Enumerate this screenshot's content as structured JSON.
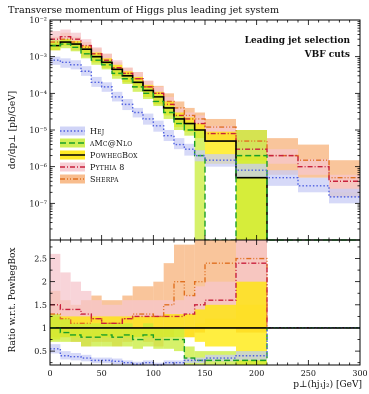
{
  "chart_data": {
    "type": "line",
    "title": "Transverse momentum of Higgs plus leading jet system",
    "annotations": [
      "Leading jet selection",
      "VBF cuts"
    ],
    "x_edges": [
      0,
      10,
      20,
      30,
      40,
      50,
      60,
      70,
      80,
      90,
      100,
      110,
      120,
      130,
      140,
      150,
      180,
      210,
      240,
      270,
      300
    ],
    "xlim": [
      0,
      300
    ],
    "xlabel": "p⊥(hj₁j₂) [GeV]",
    "x_ticks": [
      0,
      50,
      100,
      150,
      200,
      250,
      300
    ],
    "main_panel": {
      "ylabel": "dσ/dp⊥ [pb/GeV]",
      "yscale": "log",
      "ylim": [
        1e-08,
        0.01
      ],
      "y_ticks": [
        {
          "value": 0.01,
          "label": "10⁻²"
        },
        {
          "value": 0.001,
          "label": "10⁻³"
        },
        {
          "value": 0.0001,
          "label": "10⁻⁴"
        },
        {
          "value": 1e-05,
          "label": "10⁻⁵"
        },
        {
          "value": 1e-06,
          "label": "10⁻⁶"
        },
        {
          "value": 1e-07,
          "label": "10⁻⁷"
        }
      ],
      "series": [
        {
          "name": "Sherpa",
          "color": "#e07020",
          "band_color": "#f7b27a",
          "style": "dashdotdot",
          "values": [
            0.0025,
            0.003,
            0.0025,
            0.0018,
            0.0012,
            0.0008,
            0.0005,
            0.00035,
            0.00025,
            0.00015,
            0.0001,
            6e-05,
            4e-05,
            2.5e-05,
            2e-05,
            1.2e-05,
            5e-06,
            2e-06,
            1.5e-06,
            5e-07
          ],
          "band_low": [
            0.0015,
            0.002,
            0.0015,
            0.001,
            0.0007,
            0.0005,
            0.0003,
            0.0002,
            0.00015,
            8e-05,
            5e-05,
            3e-05,
            2e-05,
            1.2e-05,
            9e-06,
            5e-06,
            1.5e-06,
            6e-07,
            5e-07,
            1.5e-07
          ],
          "band_high": [
            0.0035,
            0.0045,
            0.0035,
            0.0025,
            0.0017,
            0.0012,
            0.0007,
            0.0005,
            0.00038,
            0.00022,
            0.00016,
            0.0001,
            6e-05,
            4e-05,
            3e-05,
            2e-05,
            1e-05,
            6e-06,
            4e-06,
            1.5e-06
          ]
        },
        {
          "name": "Pythia 8",
          "color": "#c8203c",
          "band_color": "#f6c6cc",
          "style": "dashdot",
          "values": [
            0.003,
            0.0035,
            0.003,
            0.002,
            0.0012,
            0.0008,
            0.0005,
            0.00035,
            0.00025,
            0.00015,
            0.0001,
            5e-05,
            2.5e-05,
            2e-05,
            1.5e-05,
            8e-06,
            3e-06,
            2e-06,
            1e-06,
            4e-07
          ],
          "band_low": [
            0.002,
            0.0025,
            0.002,
            0.0014,
            0.0008,
            0.0005,
            0.0003,
            0.00022,
            0.00016,
            9e-05,
            6e-05,
            3e-05,
            1.5e-05,
            1.2e-05,
            9e-06,
            5e-06,
            2e-06,
            1.2e-06,
            6e-07,
            2e-07
          ],
          "band_high": [
            0.005,
            0.0055,
            0.0045,
            0.003,
            0.0018,
            0.0012,
            0.0008,
            0.0005,
            0.00038,
            0.00022,
            0.00015,
            8e-05,
            4e-05,
            3e-05,
            2.5e-05,
            1.3e-05,
            5e-06,
            3e-06,
            1.6e-06,
            6e-07
          ]
        },
        {
          "name": "PowhegBox",
          "color": "#000000",
          "band_color": "#ffe800",
          "style": "solid",
          "values": [
            0.002,
            0.0025,
            0.0022,
            0.0016,
            0.001,
            0.0007,
            0.00045,
            0.0003,
            0.0002,
            0.00012,
            8e-05,
            4e-05,
            2e-05,
            1.5e-05,
            1e-05,
            5e-06,
            5e-07,
            1e-08,
            1e-08,
            1e-08
          ],
          "band_low": [
            0.0015,
            0.002,
            0.0017,
            0.0012,
            0.0007,
            0.0005,
            0.0003,
            0.0002,
            0.00014,
            8e-05,
            5e-05,
            2.5e-05,
            1.2e-05,
            9e-06,
            6e-06,
            1.2e-06,
            1e-08,
            1e-08,
            1e-08,
            1e-08
          ],
          "band_high": [
            0.0025,
            0.003,
            0.0027,
            0.002,
            0.0013,
            0.0009,
            0.0006,
            0.0004,
            0.00028,
            0.00017,
            0.00011,
            6e-05,
            3e-05,
            2.2e-05,
            1.5e-05,
            9e-06,
            2e-06,
            1e-08,
            1e-08,
            1e-08
          ]
        },
        {
          "name": "aMc@Nlo",
          "color": "#1a9e28",
          "band_color": "#c8ec38",
          "style": "dashed",
          "values": [
            0.002,
            0.0022,
            0.0018,
            0.0012,
            0.0008,
            0.0006,
            0.00035,
            0.00025,
            0.00015,
            0.0001,
            6e-05,
            3e-05,
            1.5e-05,
            1e-05,
            2e-06,
            1e-08,
            2e-06,
            1e-08,
            1e-08,
            1e-08
          ],
          "band_low": [
            0.0015,
            0.0017,
            0.0014,
            0.0009,
            0.0006,
            0.00045,
            0.00025,
            0.00018,
            0.00011,
            7e-05,
            4.5e-05,
            2e-05,
            1e-05,
            7e-06,
            1e-08,
            1e-08,
            1e-08,
            1e-08,
            1e-08,
            1e-08
          ],
          "band_high": [
            0.0028,
            0.003,
            0.0025,
            0.0017,
            0.0011,
            0.0008,
            0.0005,
            0.00035,
            0.00022,
            0.00014,
            9e-05,
            4.5e-05,
            2.5e-05,
            1.6e-05,
            1e-05,
            1e-08,
            1e-05,
            1e-08,
            1e-08,
            1e-08
          ]
        },
        {
          "name": "Hej",
          "color": "#5060e0",
          "band_color": "#c8ccf6",
          "style": "dotted",
          "values": [
            0.0008,
            0.0007,
            0.0006,
            0.0004,
            0.0002,
            0.00015,
            8e-05,
            5e-05,
            3e-05,
            2e-05,
            1.3e-05,
            7e-06,
            4e-06,
            3e-06,
            2e-06,
            1.5e-06,
            8e-07,
            5e-07,
            3e-07,
            1.5e-07
          ],
          "band_low": [
            0.0006,
            0.0005,
            0.00045,
            0.0003,
            0.00015,
            0.00011,
            6e-05,
            3.5e-05,
            2.2e-05,
            1.4e-05,
            9e-06,
            5e-06,
            3e-06,
            2e-06,
            1.4e-06,
            1e-06,
            5e-07,
            3e-07,
            2e-07,
            1e-07
          ],
          "band_high": [
            0.001,
            0.0009,
            0.0008,
            0.00055,
            0.00028,
            0.0002,
            0.00011,
            7e-05,
            4e-05,
            2.8e-05,
            1.8e-05,
            1e-05,
            6e-06,
            4.2e-06,
            2.8e-06,
            2.2e-06,
            1.2e-06,
            8e-07,
            5e-07,
            2.5e-07
          ]
        }
      ],
      "legend_order": [
        "Hej",
        "aMc@Nlo",
        "PowhegBox",
        "Pythia 8",
        "Sherpa"
      ],
      "legend_position": "middle-left"
    },
    "ratio_panel": {
      "ylabel": "Ratio w.r.t. PowhegBox",
      "ylim": [
        0.2,
        2.9
      ],
      "y_ticks": [
        0.5,
        1,
        1.5,
        2,
        2.5
      ],
      "reference_line": 1,
      "series": [
        {
          "name": "Sherpa",
          "values": [
            1.3,
            1.2,
            1.1,
            1.1,
            1.2,
            1.1,
            1.1,
            1.2,
            1.3,
            1.3,
            1.25,
            1.5,
            2,
            1.7,
            2,
            2.4,
            2.5,
            1,
            1,
            1
          ],
          "band_low": [
            0.8,
            0.8,
            0.7,
            0.6,
            0.7,
            0.7,
            0.6,
            0.7,
            0.8,
            0.7,
            0.6,
            0.8,
            1,
            0.8,
            0.9,
            1.0,
            0.9,
            1,
            1,
            1
          ],
          "band_high": [
            1.8,
            1.6,
            1.5,
            1.6,
            1.7,
            1.6,
            1.6,
            1.7,
            1.9,
            1.9,
            2,
            2.4,
            2.8,
            2.8,
            2.9,
            2.9,
            2.9,
            1,
            1,
            1
          ]
        },
        {
          "name": "Pythia 8",
          "values": [
            1.5,
            1.4,
            1.4,
            1.3,
            1.2,
            1.1,
            1.1,
            1.2,
            1.25,
            1.25,
            1.25,
            1.25,
            1.25,
            1.3,
            1.5,
            1.6,
            2.4,
            1,
            1,
            1
          ],
          "band_low": [
            1.0,
            1.0,
            1.0,
            0.9,
            0.9,
            0.9,
            0.8,
            0.9,
            1.0,
            1.0,
            1.0,
            1.0,
            1.0,
            1.0,
            1.1,
            1.2,
            1.5,
            1,
            1,
            1
          ],
          "band_high": [
            2.6,
            2.2,
            2.0,
            1.8,
            1.6,
            1.5,
            1.5,
            1.6,
            1.6,
            1.6,
            1.6,
            1.6,
            1.6,
            1.7,
            1.9,
            2.0,
            2.9,
            1,
            1,
            1
          ]
        },
        {
          "name": "PowhegBox",
          "values": [
            1,
            1,
            1,
            1,
            1,
            1,
            1,
            1,
            1,
            1,
            1,
            1,
            1,
            1,
            1,
            1,
            1,
            1,
            1,
            1
          ],
          "band_low": [
            0.75,
            0.8,
            0.8,
            0.8,
            0.8,
            0.8,
            0.8,
            0.8,
            0.8,
            0.8,
            0.8,
            0.8,
            0.8,
            0.8,
            0.7,
            0.6,
            0.2,
            1,
            1,
            1
          ],
          "band_high": [
            1.25,
            1.25,
            1.25,
            1.25,
            1.25,
            1.25,
            1.25,
            1.25,
            1.25,
            1.25,
            1.25,
            1.3,
            1.3,
            1.3,
            1.4,
            1.5,
            2.0,
            1,
            1,
            1
          ]
        },
        {
          "name": "aMc@Nlo",
          "values": [
            1.0,
            0.9,
            0.85,
            0.8,
            0.8,
            0.85,
            0.8,
            0.85,
            0.75,
            0.85,
            0.75,
            0.75,
            0.75,
            0.35,
            0.3,
            0.3,
            0.3,
            1,
            1,
            1
          ],
          "band_low": [
            0.7,
            0.7,
            0.7,
            0.6,
            0.6,
            0.6,
            0.6,
            0.6,
            0.55,
            0.6,
            0.55,
            0.55,
            0.5,
            0.2,
            0.2,
            0.2,
            0.2,
            1,
            1,
            1
          ],
          "band_high": [
            1.3,
            1.2,
            1.1,
            1.1,
            1.1,
            1.1,
            1.1,
            1.1,
            1.0,
            1.1,
            1.0,
            1.0,
            1.0,
            0.6,
            0.5,
            0.5,
            0.5,
            1,
            1,
            1
          ]
        },
        {
          "name": "Hej",
          "values": [
            0.55,
            0.4,
            0.38,
            0.35,
            0.3,
            0.3,
            0.28,
            0.25,
            0.22,
            0.25,
            0.2,
            0.25,
            0.25,
            0.3,
            0.3,
            0.35,
            0.4,
            1,
            1,
            1
          ],
          "band_low": [
            0.45,
            0.32,
            0.3,
            0.28,
            0.24,
            0.24,
            0.22,
            0.2,
            0.18,
            0.2,
            0.16,
            0.2,
            0.2,
            0.24,
            0.24,
            0.28,
            0.3,
            1,
            1,
            1
          ],
          "band_high": [
            0.65,
            0.5,
            0.46,
            0.42,
            0.36,
            0.36,
            0.34,
            0.3,
            0.27,
            0.3,
            0.25,
            0.3,
            0.3,
            0.36,
            0.36,
            0.42,
            0.5,
            1,
            1,
            1
          ]
        }
      ]
    },
    "grid": false
  }
}
